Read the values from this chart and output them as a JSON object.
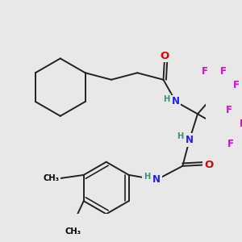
{
  "bg": "#e8e8e8",
  "bc": "#222222",
  "lw": 1.4,
  "C": "#000000",
  "H": "#3a9080",
  "N": "#2020ee",
  "O": "#dd0000",
  "F": "#dd00dd",
  "fs": 8.5,
  "fss": 7.2
}
